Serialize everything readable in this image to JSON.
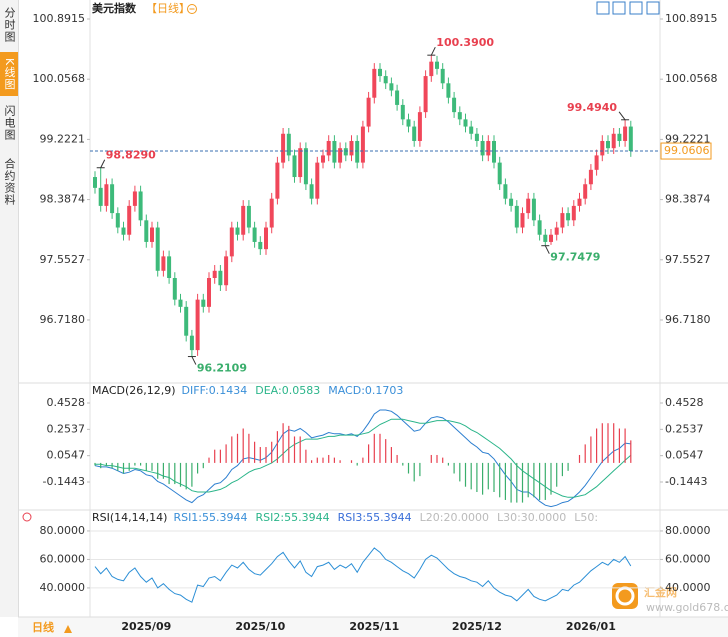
{
  "sidebar_tabs": [
    "分时图",
    "K线图",
    "闪电图",
    "合约资料"
  ],
  "header": {
    "title": "美元指数",
    "period": "【日线】"
  },
  "footer": {
    "period": "日线"
  },
  "watermark": {
    "name": "汇金网",
    "url": "www.gold678.com"
  },
  "chart_data": [
    {
      "type": "candlestick",
      "up_color": "#f0475a",
      "down_color": "#3dba7a",
      "ylim": [
        95.844,
        101.155
      ],
      "yticks": [
        100.8915,
        100.0568,
        99.2221,
        98.3874,
        97.5527,
        {
          "value": 96.718,
          "label": "96.7180"
        }
      ],
      "last_price": {
        "value": 99.0606,
        "label": "99.0606"
      },
      "annotations": [
        {
          "index": 1,
          "value": 98.829,
          "label": "98.8290",
          "color": "#e8404f",
          "position": "above"
        },
        {
          "index": 59,
          "value": 100.39,
          "label": "100.3900",
          "color": "#e8404f",
          "position": "above"
        },
        {
          "index": 93,
          "value": 99.494,
          "label": "99.4940",
          "color": "#e8404f",
          "position": "above"
        },
        {
          "index": 17,
          "value": 96.2109,
          "label": "96.2109",
          "color": "#3aae6c",
          "position": "below"
        },
        {
          "index": 79,
          "value": 97.7479,
          "label": "97.7479",
          "color": "#3aae6c",
          "position": "below"
        }
      ],
      "x_labels": [
        {
          "index": 9,
          "label": "2025/09"
        },
        {
          "index": 29,
          "label": "2025/10"
        },
        {
          "index": 49,
          "label": "2025/11"
        },
        {
          "index": 67,
          "label": "2025/12"
        },
        {
          "index": 87,
          "label": "2026/01"
        }
      ],
      "candles": [
        [
          98.7,
          98.78,
          98.47,
          98.55
        ],
        [
          98.55,
          98.829,
          98.22,
          98.3
        ],
        [
          98.3,
          98.68,
          98.22,
          98.6
        ],
        [
          98.6,
          98.68,
          98.12,
          98.2
        ],
        [
          98.2,
          98.28,
          97.92,
          98.0
        ],
        [
          98.0,
          98.08,
          97.82,
          97.9
        ],
        [
          97.9,
          98.38,
          97.82,
          98.3
        ],
        [
          98.3,
          98.58,
          98.22,
          98.5
        ],
        [
          98.5,
          98.58,
          98.02,
          98.1
        ],
        [
          98.1,
          98.18,
          97.72,
          97.8
        ],
        [
          97.8,
          98.08,
          97.72,
          98.0
        ],
        [
          98.0,
          98.08,
          97.32,
          97.4
        ],
        [
          97.4,
          97.68,
          97.32,
          97.6
        ],
        [
          97.6,
          97.68,
          97.22,
          97.3
        ],
        [
          97.3,
          97.38,
          96.92,
          97.0
        ],
        [
          97.0,
          97.08,
          96.82,
          96.9
        ],
        [
          96.9,
          96.98,
          96.42,
          96.5
        ],
        [
          96.5,
          96.58,
          96.2109,
          96.3
        ],
        [
          96.3,
          97.08,
          96.22,
          97.0
        ],
        [
          97.0,
          97.08,
          96.82,
          96.9
        ],
        [
          96.9,
          97.38,
          96.82,
          97.3
        ],
        [
          97.3,
          97.48,
          97.22,
          97.4
        ],
        [
          97.4,
          97.48,
          97.12,
          97.2
        ],
        [
          97.2,
          97.68,
          97.12,
          97.6
        ],
        [
          97.6,
          98.08,
          97.52,
          98.0
        ],
        [
          98.0,
          98.08,
          97.82,
          97.9
        ],
        [
          97.9,
          98.38,
          97.82,
          98.3
        ],
        [
          98.3,
          98.38,
          97.92,
          98.0
        ],
        [
          98.0,
          98.08,
          97.72,
          97.8
        ],
        [
          97.8,
          97.88,
          97.62,
          97.7
        ],
        [
          97.7,
          98.08,
          97.62,
          98.0
        ],
        [
          98.0,
          98.48,
          97.92,
          98.4
        ],
        [
          98.4,
          98.98,
          98.32,
          98.9
        ],
        [
          98.9,
          99.38,
          98.82,
          99.3
        ],
        [
          99.3,
          99.38,
          98.92,
          99.0
        ],
        [
          99.0,
          99.08,
          98.62,
          98.7
        ],
        [
          98.7,
          99.18,
          98.62,
          99.1
        ],
        [
          99.1,
          99.18,
          98.52,
          98.6
        ],
        [
          98.6,
          98.68,
          98.32,
          98.4
        ],
        [
          98.4,
          98.98,
          98.32,
          98.9
        ],
        [
          98.9,
          99.08,
          98.82,
          99.0
        ],
        [
          99.0,
          99.28,
          98.92,
          99.2
        ],
        [
          99.2,
          99.28,
          98.82,
          98.9
        ],
        [
          98.9,
          99.18,
          98.82,
          99.1
        ],
        [
          99.1,
          99.18,
          98.92,
          99.0
        ],
        [
          99.0,
          99.28,
          98.92,
          99.2
        ],
        [
          99.2,
          99.28,
          98.82,
          98.9
        ],
        [
          98.9,
          99.48,
          98.82,
          99.4
        ],
        [
          99.4,
          99.88,
          99.32,
          99.8
        ],
        [
          99.8,
          100.28,
          99.72,
          100.2
        ],
        [
          100.2,
          100.28,
          100.02,
          100.1
        ],
        [
          100.1,
          100.18,
          99.92,
          100.0
        ],
        [
          100.0,
          100.08,
          99.82,
          99.9
        ],
        [
          99.9,
          99.98,
          99.62,
          99.7
        ],
        [
          99.7,
          99.78,
          99.42,
          99.5
        ],
        [
          99.5,
          99.58,
          99.32,
          99.4
        ],
        [
          99.4,
          99.48,
          99.12,
          99.2
        ],
        [
          99.2,
          99.68,
          99.12,
          99.6
        ],
        [
          99.6,
          100.18,
          99.52,
          100.1
        ],
        [
          100.1,
          100.39,
          100.02,
          100.3
        ],
        [
          100.3,
          100.38,
          100.12,
          100.2
        ],
        [
          100.2,
          100.28,
          99.92,
          100.0
        ],
        [
          100.0,
          100.08,
          99.72,
          99.8
        ],
        [
          99.8,
          99.88,
          99.52,
          99.6
        ],
        [
          99.6,
          99.68,
          99.42,
          99.5
        ],
        [
          99.5,
          99.58,
          99.32,
          99.4
        ],
        [
          99.4,
          99.48,
          99.22,
          99.3
        ],
        [
          99.3,
          99.38,
          99.12,
          99.2
        ],
        [
          99.2,
          99.28,
          98.92,
          99.0
        ],
        [
          99.0,
          99.28,
          98.92,
          99.2
        ],
        [
          99.2,
          99.28,
          98.82,
          98.9
        ],
        [
          98.9,
          98.98,
          98.52,
          98.6
        ],
        [
          98.6,
          98.68,
          98.32,
          98.4
        ],
        [
          98.4,
          98.48,
          98.22,
          98.3
        ],
        [
          98.3,
          98.38,
          97.92,
          98.0
        ],
        [
          98.0,
          98.28,
          97.92,
          98.2
        ],
        [
          98.2,
          98.48,
          98.12,
          98.4
        ],
        [
          98.4,
          98.48,
          98.02,
          98.1
        ],
        [
          98.1,
          98.18,
          97.82,
          97.9
        ],
        [
          97.9,
          97.98,
          97.7479,
          97.8
        ],
        [
          97.8,
          97.98,
          97.76,
          97.9
        ],
        [
          97.9,
          98.08,
          97.82,
          98.0
        ],
        [
          98.0,
          98.28,
          97.92,
          98.2
        ],
        [
          98.2,
          98.28,
          98.02,
          98.1
        ],
        [
          98.1,
          98.38,
          98.02,
          98.3
        ],
        [
          98.3,
          98.48,
          98.22,
          98.4
        ],
        [
          98.4,
          98.68,
          98.32,
          98.6
        ],
        [
          98.6,
          98.88,
          98.52,
          98.8
        ],
        [
          98.8,
          99.08,
          98.72,
          99.0
        ],
        [
          99.0,
          99.28,
          98.92,
          99.2
        ],
        [
          99.2,
          99.28,
          99.02,
          99.1
        ],
        [
          99.1,
          99.38,
          99.02,
          99.3
        ],
        [
          99.3,
          99.38,
          99.12,
          99.2
        ],
        [
          99.2,
          99.494,
          99.12,
          99.4
        ],
        [
          99.4,
          99.48,
          98.98,
          99.0606
        ]
      ]
    },
    {
      "type": "macd",
      "title": "MACD(26,12,9)",
      "legend": [
        {
          "label": "DIFF:0.1434",
          "color": "#3a8fd8"
        },
        {
          "label": "DEA:0.0583",
          "color": "#2bb58a"
        },
        {
          "label": "MACD:0.1703",
          "color": "#3a8fd8"
        }
      ],
      "ylim": [
        -0.356,
        0.604
      ],
      "yticks": [
        0.4528,
        0.2537,
        0.0547,
        -0.1443
      ],
      "up_color": "#e8404f",
      "down_color": "#3aae6c",
      "series": [
        {
          "kind": "line",
          "color": "#2d7fd0",
          "values": [
            -0.02,
            -0.03,
            -0.03,
            -0.04,
            -0.06,
            -0.08,
            -0.07,
            -0.05,
            -0.06,
            -0.09,
            -0.1,
            -0.14,
            -0.16,
            -0.19,
            -0.22,
            -0.25,
            -0.28,
            -0.3,
            -0.26,
            -0.24,
            -0.2,
            -0.16,
            -0.15,
            -0.11,
            -0.05,
            -0.02,
            0.03,
            0.04,
            0.03,
            0.02,
            0.04,
            0.08,
            0.15,
            0.22,
            0.25,
            0.24,
            0.26,
            0.23,
            0.19,
            0.2,
            0.21,
            0.23,
            0.22,
            0.22,
            0.21,
            0.22,
            0.2,
            0.24,
            0.3,
            0.37,
            0.4,
            0.4,
            0.39,
            0.36,
            0.32,
            0.28,
            0.24,
            0.25,
            0.3,
            0.34,
            0.35,
            0.34,
            0.31,
            0.27,
            0.23,
            0.19,
            0.15,
            0.12,
            0.08,
            0.07,
            0.03,
            -0.03,
            -0.09,
            -0.14,
            -0.2,
            -0.22,
            -0.22,
            -0.25,
            -0.29,
            -0.32,
            -0.33,
            -0.32,
            -0.3,
            -0.29,
            -0.26,
            -0.22,
            -0.17,
            -0.11,
            -0.05,
            0.01,
            0.05,
            0.09,
            0.11,
            0.15,
            0.1434
          ]
        },
        {
          "kind": "line",
          "color": "#2bb58a",
          "values": [
            -0.01,
            -0.01,
            -0.02,
            -0.02,
            -0.03,
            -0.04,
            -0.04,
            -0.04,
            -0.05,
            -0.06,
            -0.07,
            -0.08,
            -0.1,
            -0.11,
            -0.14,
            -0.16,
            -0.18,
            -0.21,
            -0.22,
            -0.22,
            -0.22,
            -0.21,
            -0.2,
            -0.18,
            -0.15,
            -0.13,
            -0.1,
            -0.07,
            -0.05,
            -0.04,
            -0.02,
            0.0,
            0.03,
            0.07,
            0.11,
            0.14,
            0.16,
            0.18,
            0.18,
            0.18,
            0.19,
            0.2,
            0.2,
            0.21,
            0.21,
            0.21,
            0.21,
            0.22,
            0.23,
            0.26,
            0.29,
            0.31,
            0.33,
            0.33,
            0.33,
            0.32,
            0.31,
            0.3,
            0.3,
            0.31,
            0.32,
            0.32,
            0.32,
            0.31,
            0.3,
            0.28,
            0.25,
            0.23,
            0.2,
            0.17,
            0.14,
            0.11,
            0.07,
            0.03,
            -0.02,
            -0.06,
            -0.09,
            -0.12,
            -0.15,
            -0.18,
            -0.21,
            -0.23,
            -0.25,
            -0.26,
            -0.26,
            -0.25,
            -0.24,
            -0.21,
            -0.18,
            -0.14,
            -0.1,
            -0.06,
            -0.02,
            0.02,
            0.0583
          ]
        },
        {
          "kind": "histogram",
          "values": [
            -0.02,
            -0.04,
            -0.02,
            -0.04,
            -0.06,
            -0.08,
            -0.06,
            -0.02,
            -0.02,
            -0.06,
            -0.06,
            -0.12,
            -0.12,
            -0.16,
            -0.16,
            -0.18,
            -0.2,
            -0.18,
            -0.08,
            -0.04,
            0.04,
            0.1,
            0.1,
            0.14,
            0.2,
            0.22,
            0.26,
            0.22,
            0.16,
            0.12,
            0.12,
            0.16,
            0.24,
            0.3,
            0.28,
            0.2,
            0.2,
            0.1,
            0.02,
            0.04,
            0.04,
            0.06,
            0.04,
            0.02,
            0.0,
            0.02,
            -0.02,
            0.04,
            0.14,
            0.22,
            0.22,
            0.18,
            0.12,
            0.06,
            -0.02,
            -0.08,
            -0.14,
            -0.1,
            0.0,
            0.06,
            0.06,
            0.04,
            -0.02,
            -0.08,
            -0.14,
            -0.18,
            -0.2,
            -0.22,
            -0.24,
            -0.2,
            -0.22,
            -0.26,
            -0.28,
            -0.3,
            -0.3,
            -0.3,
            -0.26,
            -0.26,
            -0.28,
            -0.28,
            -0.24,
            -0.18,
            -0.1,
            -0.06,
            0.0,
            0.06,
            0.14,
            0.2,
            0.26,
            0.3,
            0.3,
            0.3,
            0.26,
            0.26,
            0.1703
          ]
        }
      ]
    },
    {
      "type": "line",
      "title": "RSI(14,14,14)",
      "legend": [
        {
          "label": "RSI1:55.3944",
          "color": "#3a8fd8"
        },
        {
          "label": "RSI2:55.3944",
          "color": "#2bb58a"
        },
        {
          "label": "RSI3:55.3944",
          "color": "#3a6fd8"
        },
        {
          "label": "L20:20.0000",
          "color": "#bbbbbb"
        },
        {
          "label": "L30:30.0000",
          "color": "#bbbbbb"
        },
        {
          "label": "L50:",
          "color": "#bbbbbb"
        }
      ],
      "ylim": [
        19.6,
        94.7
      ],
      "yticks": [
        {
          "value": 80,
          "label": "80.0000"
        },
        {
          "value": 60,
          "label": "60.0000"
        },
        {
          "value": 40,
          "label": "40.0000"
        }
      ],
      "series": [
        {
          "color": "#2c8fd6",
          "values": [
            55,
            50,
            54,
            48,
            46,
            45,
            51,
            54,
            48,
            44,
            47,
            40,
            43,
            39,
            36,
            35,
            32,
            30,
            42,
            41,
            47,
            48,
            45,
            51,
            56,
            54,
            58,
            53,
            50,
            49,
            53,
            57,
            62,
            65,
            59,
            54,
            59,
            51,
            48,
            55,
            56,
            58,
            53,
            56,
            54,
            57,
            51,
            58,
            63,
            68,
            65,
            60,
            58,
            55,
            52,
            50,
            47,
            53,
            60,
            63,
            61,
            57,
            53,
            50,
            48,
            47,
            45,
            44,
            41,
            45,
            40,
            37,
            35,
            34,
            31,
            35,
            39,
            34,
            32,
            31,
            33,
            35,
            39,
            38,
            42,
            44,
            48,
            52,
            55,
            58,
            56,
            60,
            58,
            62,
            55.3944
          ]
        }
      ]
    }
  ]
}
